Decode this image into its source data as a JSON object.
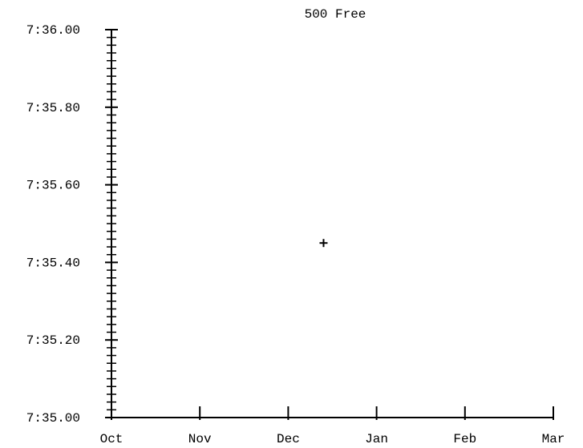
{
  "chart_data": {
    "type": "scatter",
    "title": "500 Free",
    "x_ticks": [
      "Oct",
      "Nov",
      "Dec",
      "Jan",
      "Feb",
      "Mar"
    ],
    "y_ticks": [
      {
        "label": "7:36.00",
        "value": 456.0
      },
      {
        "label": "7:35.80",
        "value": 455.8
      },
      {
        "label": "7:35.60",
        "value": 455.6
      },
      {
        "label": "7:35.40",
        "value": 455.4
      },
      {
        "label": "7:35.20",
        "value": 455.2
      },
      {
        "label": "7:35.00",
        "value": 455.0
      }
    ],
    "ylim": [
      455.0,
      456.0
    ],
    "y_minor_step": 0.02,
    "points": [
      {
        "x_month_index": 2.4,
        "y": 455.45,
        "marker": "plus"
      }
    ],
    "grid": false,
    "colors": {
      "axis": "#000000",
      "marker": "#000000"
    }
  }
}
